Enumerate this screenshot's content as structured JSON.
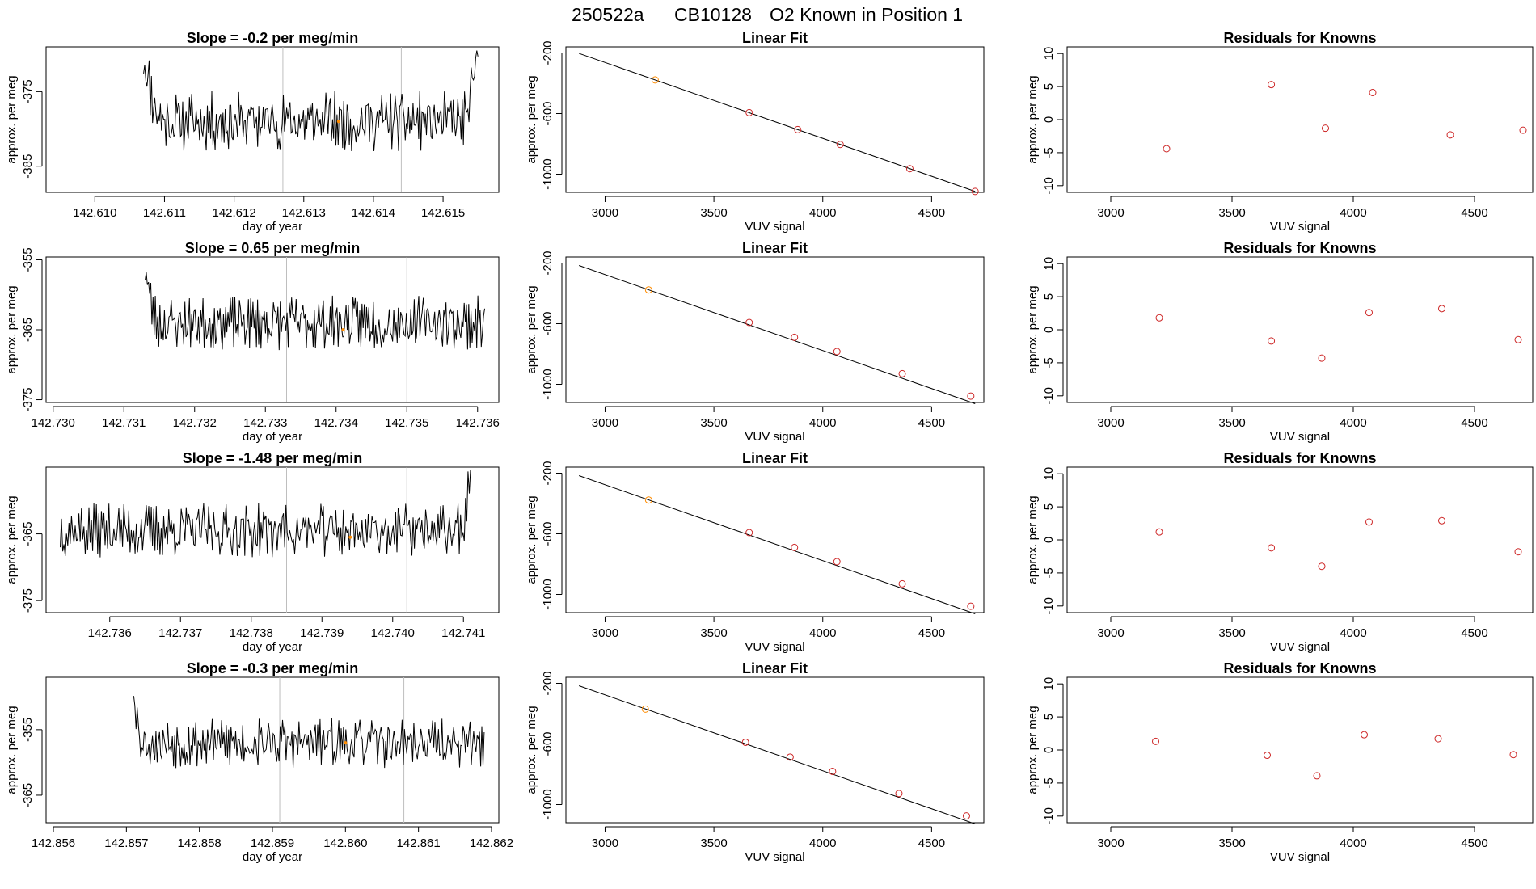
{
  "title": {
    "run": "250522a",
    "cylinder": "CB10128",
    "desc": "O2 Known in Position  1"
  },
  "colors": {
    "line": "#000000",
    "vline": "#bebebe",
    "point_red": "#cd2626",
    "point_orange": "#ff8c00",
    "frame": "#000000"
  },
  "chart_data": [
    {
      "row": 1,
      "timeseries": {
        "type": "line",
        "title": "Slope =  -0.2  per meg/min",
        "xlabel": "day of year",
        "ylabel": "approx. per meg",
        "xlim": [
          142.6093,
          142.6158
        ],
        "ylim": [
          -388.5,
          -369.0
        ],
        "xticks": [
          142.61,
          142.611,
          142.612,
          142.613,
          142.614,
          142.615
        ],
        "xtick_labels": [
          "142.610",
          "142.611",
          "142.612",
          "142.613",
          "142.614",
          "142.615"
        ],
        "yticks": [
          -375,
          -385
        ],
        "ytick_labels": [
          "-375",
          "-385"
        ],
        "x_start": 142.6107,
        "x_end": 142.6155,
        "n": 300,
        "seed": 11,
        "base": -379.0,
        "amp": 3.2,
        "start_level": -370.0,
        "start_len": 20,
        "end_level": -370.0,
        "end_len": 15,
        "vlines": [
          142.6127,
          142.6144
        ],
        "marker": {
          "x": 142.6135,
          "y": -379.0
        }
      },
      "fit": {
        "type": "scatter",
        "title": "Linear Fit",
        "xlabel": "VUV signal",
        "ylabel": "approx. per meg",
        "xlim": [
          2820,
          4740
        ],
        "ylim": [
          -1120,
          -160
        ],
        "xticks": [
          3000,
          3500,
          4000,
          4500
        ],
        "yticks": [
          -200,
          -600,
          -1000
        ],
        "line": {
          "x0": 2880,
          "y0": -203,
          "x1": 4700,
          "y1": -1114
        },
        "points": [
          {
            "x": 3230,
            "y": -378,
            "color": "orange"
          },
          {
            "x": 3662,
            "y": -594,
            "color": "red"
          },
          {
            "x": 3885,
            "y": -706,
            "color": "red"
          },
          {
            "x": 4080,
            "y": -804,
            "color": "red"
          },
          {
            "x": 4400,
            "y": -964,
            "color": "red"
          },
          {
            "x": 4700,
            "y": -1114,
            "color": "red"
          }
        ]
      },
      "residuals": {
        "type": "scatter",
        "title": "Residuals for Knowns",
        "xlabel": "VUV signal",
        "ylabel": "approx. per meg",
        "xlim": [
          2820,
          4740
        ],
        "ylim": [
          -11,
          11
        ],
        "xticks": [
          3000,
          3500,
          4000,
          4500
        ],
        "yticks": [
          10,
          5,
          0,
          -5,
          -10
        ],
        "points": [
          {
            "x": 3230,
            "y": -4.4
          },
          {
            "x": 3662,
            "y": 5.3
          },
          {
            "x": 3885,
            "y": -1.3
          },
          {
            "x": 4080,
            "y": 4.1
          },
          {
            "x": 4400,
            "y": -2.3
          },
          {
            "x": 4700,
            "y": -1.6
          }
        ]
      }
    },
    {
      "row": 2,
      "timeseries": {
        "type": "line",
        "title": "Slope =  0.65  per meg/min",
        "xlabel": "day of year",
        "ylabel": "approx. per meg",
        "xlim": [
          142.7299,
          142.7363
        ],
        "ylim": [
          -375.4,
          -354.6
        ],
        "xticks": [
          142.73,
          142.731,
          142.732,
          142.733,
          142.734,
          142.735,
          142.736
        ],
        "xtick_labels": [
          "142.730",
          "142.731",
          "142.732",
          "142.733",
          "142.734",
          "142.735",
          "142.736"
        ],
        "yticks": [
          -355,
          -365,
          -375
        ],
        "ytick_labels": [
          "-355",
          "-365",
          "-375"
        ],
        "x_start": 142.7313,
        "x_end": 142.7361,
        "n": 300,
        "seed": 23,
        "base": -364.0,
        "amp": 3.0,
        "start_level": -355.5,
        "start_len": 12,
        "end_level": -365.0,
        "end_len": 0,
        "vlines": [
          142.7333,
          142.735
        ],
        "marker": {
          "x": 142.7341,
          "y": -365.0
        }
      },
      "fit": {
        "type": "scatter",
        "title": "Linear Fit",
        "xlabel": "VUV signal",
        "ylabel": "approx. per meg",
        "xlim": [
          2820,
          4740
        ],
        "ylim": [
          -1120,
          -160
        ],
        "xticks": [
          3000,
          3500,
          4000,
          4500
        ],
        "yticks": [
          -200,
          -600,
          -1000
        ],
        "line": {
          "x0": 2880,
          "y0": -216,
          "x1": 4700,
          "y1": -1128
        },
        "points": [
          {
            "x": 3200,
            "y": -377,
            "color": "orange"
          },
          {
            "x": 3662,
            "y": -592,
            "color": "red"
          },
          {
            "x": 3870,
            "y": -690,
            "color": "red"
          },
          {
            "x": 4065,
            "y": -784,
            "color": "red"
          },
          {
            "x": 4365,
            "y": -930,
            "color": "red"
          },
          {
            "x": 4680,
            "y": -1078,
            "color": "red"
          }
        ]
      },
      "residuals": {
        "type": "scatter",
        "title": "Residuals for Knowns",
        "xlabel": "VUV signal",
        "ylabel": "approx. per meg",
        "xlim": [
          2820,
          4740
        ],
        "ylim": [
          -11,
          11
        ],
        "xticks": [
          3000,
          3500,
          4000,
          4500
        ],
        "yticks": [
          10,
          5,
          0,
          -5,
          -10
        ],
        "points": [
          {
            "x": 3200,
            "y": 1.8
          },
          {
            "x": 3662,
            "y": -1.7
          },
          {
            "x": 3870,
            "y": -4.3
          },
          {
            "x": 4065,
            "y": 2.6
          },
          {
            "x": 4365,
            "y": 3.2
          },
          {
            "x": 4680,
            "y": -1.5
          }
        ]
      }
    },
    {
      "row": 3,
      "timeseries": {
        "type": "line",
        "title": "Slope =  -1.48  per meg/min",
        "xlabel": "day of year",
        "ylabel": "approx. per meg",
        "xlim": [
          142.7351,
          142.7415
        ],
        "ylim": [
          -376.8,
          -355.0
        ],
        "xticks": [
          142.736,
          142.737,
          142.738,
          142.739,
          142.74,
          142.741
        ],
        "xtick_labels": [
          "142.736",
          "142.737",
          "142.738",
          "142.739",
          "142.740",
          "142.741"
        ],
        "yticks": [
          -365,
          -375
        ],
        "ytick_labels": [
          "-365",
          "-375"
        ],
        "x_start": 142.7353,
        "x_end": 142.7411,
        "n": 330,
        "seed": 37,
        "base": -364.5,
        "amp": 3.2,
        "start_level": -364.5,
        "start_len": 0,
        "end_level": -357.0,
        "end_len": 10,
        "vlines": [
          142.7385,
          142.7402
        ],
        "marker": {
          "x": 142.7394,
          "y": -365.5
        }
      },
      "fit": {
        "type": "scatter",
        "title": "Linear Fit",
        "xlabel": "VUV signal",
        "ylabel": "approx. per meg",
        "xlim": [
          2820,
          4740
        ],
        "ylim": [
          -1120,
          -160
        ],
        "xticks": [
          3000,
          3500,
          4000,
          4500
        ],
        "yticks": [
          -200,
          -600,
          -1000
        ],
        "line": {
          "x0": 2880,
          "y0": -216,
          "x1": 4700,
          "y1": -1128
        },
        "points": [
          {
            "x": 3200,
            "y": -377,
            "color": "orange"
          },
          {
            "x": 3662,
            "y": -592,
            "color": "red"
          },
          {
            "x": 3870,
            "y": -690,
            "color": "red"
          },
          {
            "x": 4065,
            "y": -784,
            "color": "red"
          },
          {
            "x": 4365,
            "y": -930,
            "color": "red"
          },
          {
            "x": 4680,
            "y": -1078,
            "color": "red"
          }
        ]
      },
      "residuals": {
        "type": "scatter",
        "title": "Residuals for Knowns",
        "xlabel": "VUV signal",
        "ylabel": "approx. per meg",
        "xlim": [
          2820,
          4740
        ],
        "ylim": [
          -11,
          11
        ],
        "xticks": [
          3000,
          3500,
          4000,
          4500
        ],
        "yticks": [
          10,
          5,
          0,
          -5,
          -10
        ],
        "points": [
          {
            "x": 3200,
            "y": 1.2
          },
          {
            "x": 3662,
            "y": -1.2
          },
          {
            "x": 3870,
            "y": -4.0
          },
          {
            "x": 4065,
            "y": 2.7
          },
          {
            "x": 4365,
            "y": 2.9
          },
          {
            "x": 4680,
            "y": -1.8
          }
        ]
      }
    },
    {
      "row": 4,
      "timeseries": {
        "type": "line",
        "title": "Slope =  -0.3  per meg/min",
        "xlabel": "day of year",
        "ylabel": "approx. per meg",
        "xlim": [
          142.8559,
          142.8621
        ],
        "ylim": [
          -369.2,
          -347.0
        ],
        "xticks": [
          142.856,
          142.857,
          142.858,
          142.859,
          142.86,
          142.861,
          142.862
        ],
        "xtick_labels": [
          "142.856",
          "142.857",
          "142.858",
          "142.859",
          "142.860",
          "142.861",
          "142.862"
        ],
        "yticks": [
          -355,
          -365
        ],
        "ytick_labels": [
          "-355",
          "-365"
        ],
        "x_start": 142.8571,
        "x_end": 142.8619,
        "n": 300,
        "seed": 53,
        "base": -357.0,
        "amp": 3.0,
        "start_level": -347.5,
        "start_len": 8,
        "end_level": -357.0,
        "end_len": 0,
        "vlines": [
          142.8591,
          142.8608
        ],
        "marker": {
          "x": 142.86,
          "y": -357.0
        }
      },
      "fit": {
        "type": "scatter",
        "title": "Linear Fit",
        "xlabel": "VUV signal",
        "ylabel": "approx. per meg",
        "xlim": [
          2820,
          4740
        ],
        "ylim": [
          -1120,
          -160
        ],
        "xticks": [
          3000,
          3500,
          4000,
          4500
        ],
        "yticks": [
          -200,
          -600,
          -1000
        ],
        "line": {
          "x0": 2880,
          "y0": -216,
          "x1": 4700,
          "y1": -1128
        },
        "points": [
          {
            "x": 3185,
            "y": -370,
            "color": "orange"
          },
          {
            "x": 3645,
            "y": -589,
            "color": "red"
          },
          {
            "x": 3850,
            "y": -687,
            "color": "red"
          },
          {
            "x": 4045,
            "y": -781,
            "color": "red"
          },
          {
            "x": 4350,
            "y": -927,
            "color": "red"
          },
          {
            "x": 4660,
            "y": -1075,
            "color": "red"
          }
        ]
      },
      "residuals": {
        "type": "scatter",
        "title": "Residuals for Knowns",
        "xlabel": "VUV signal",
        "ylabel": "approx. per meg",
        "xlim": [
          2820,
          4740
        ],
        "ylim": [
          -11,
          11
        ],
        "xticks": [
          3000,
          3500,
          4000,
          4500
        ],
        "yticks": [
          10,
          5,
          0,
          -5,
          -10
        ],
        "points": [
          {
            "x": 3185,
            "y": 1.3
          },
          {
            "x": 3645,
            "y": -0.8
          },
          {
            "x": 3850,
            "y": -3.9
          },
          {
            "x": 4045,
            "y": 2.3
          },
          {
            "x": 4350,
            "y": 1.7
          },
          {
            "x": 4660,
            "y": -0.7
          }
        ]
      }
    }
  ]
}
